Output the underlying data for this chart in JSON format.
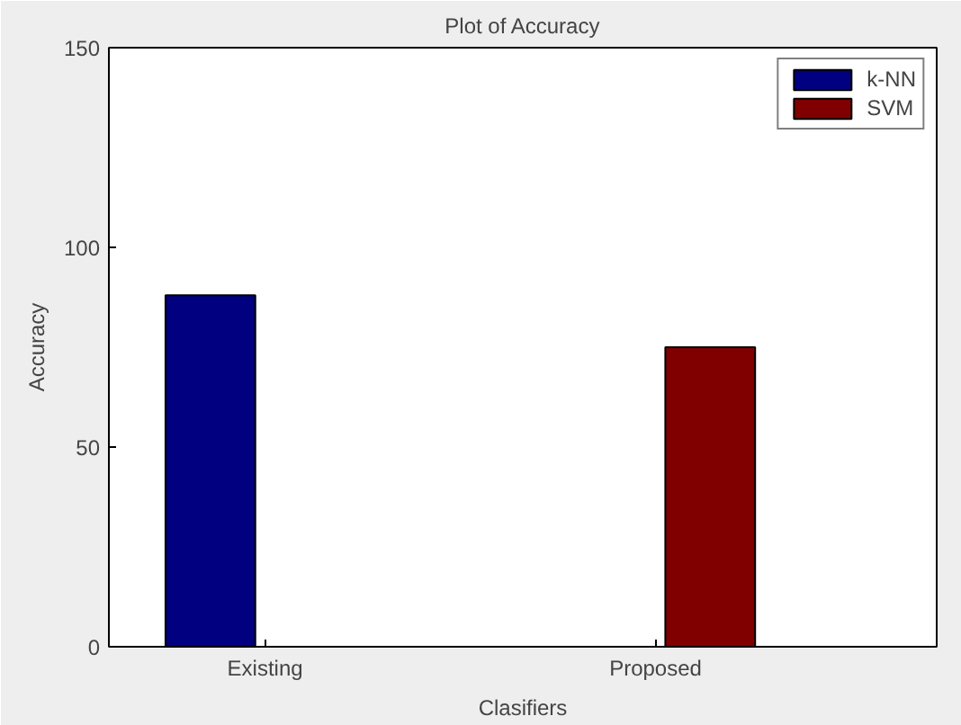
{
  "chart_data": {
    "type": "bar",
    "title": "Plot of Accuracy",
    "xlabel": "Clasifiers",
    "ylabel": "Accuracy",
    "categories": [
      "Existing",
      "Proposed"
    ],
    "series": [
      {
        "name": "k-NN",
        "color": "#000080",
        "values": [
          88,
          null
        ]
      },
      {
        "name": "SVM",
        "color": "#800000",
        "values": [
          null,
          75
        ]
      }
    ],
    "ylim": [
      0,
      150
    ],
    "yticks": [
      0,
      50,
      100,
      150
    ],
    "grid": false,
    "legend": "top right"
  }
}
